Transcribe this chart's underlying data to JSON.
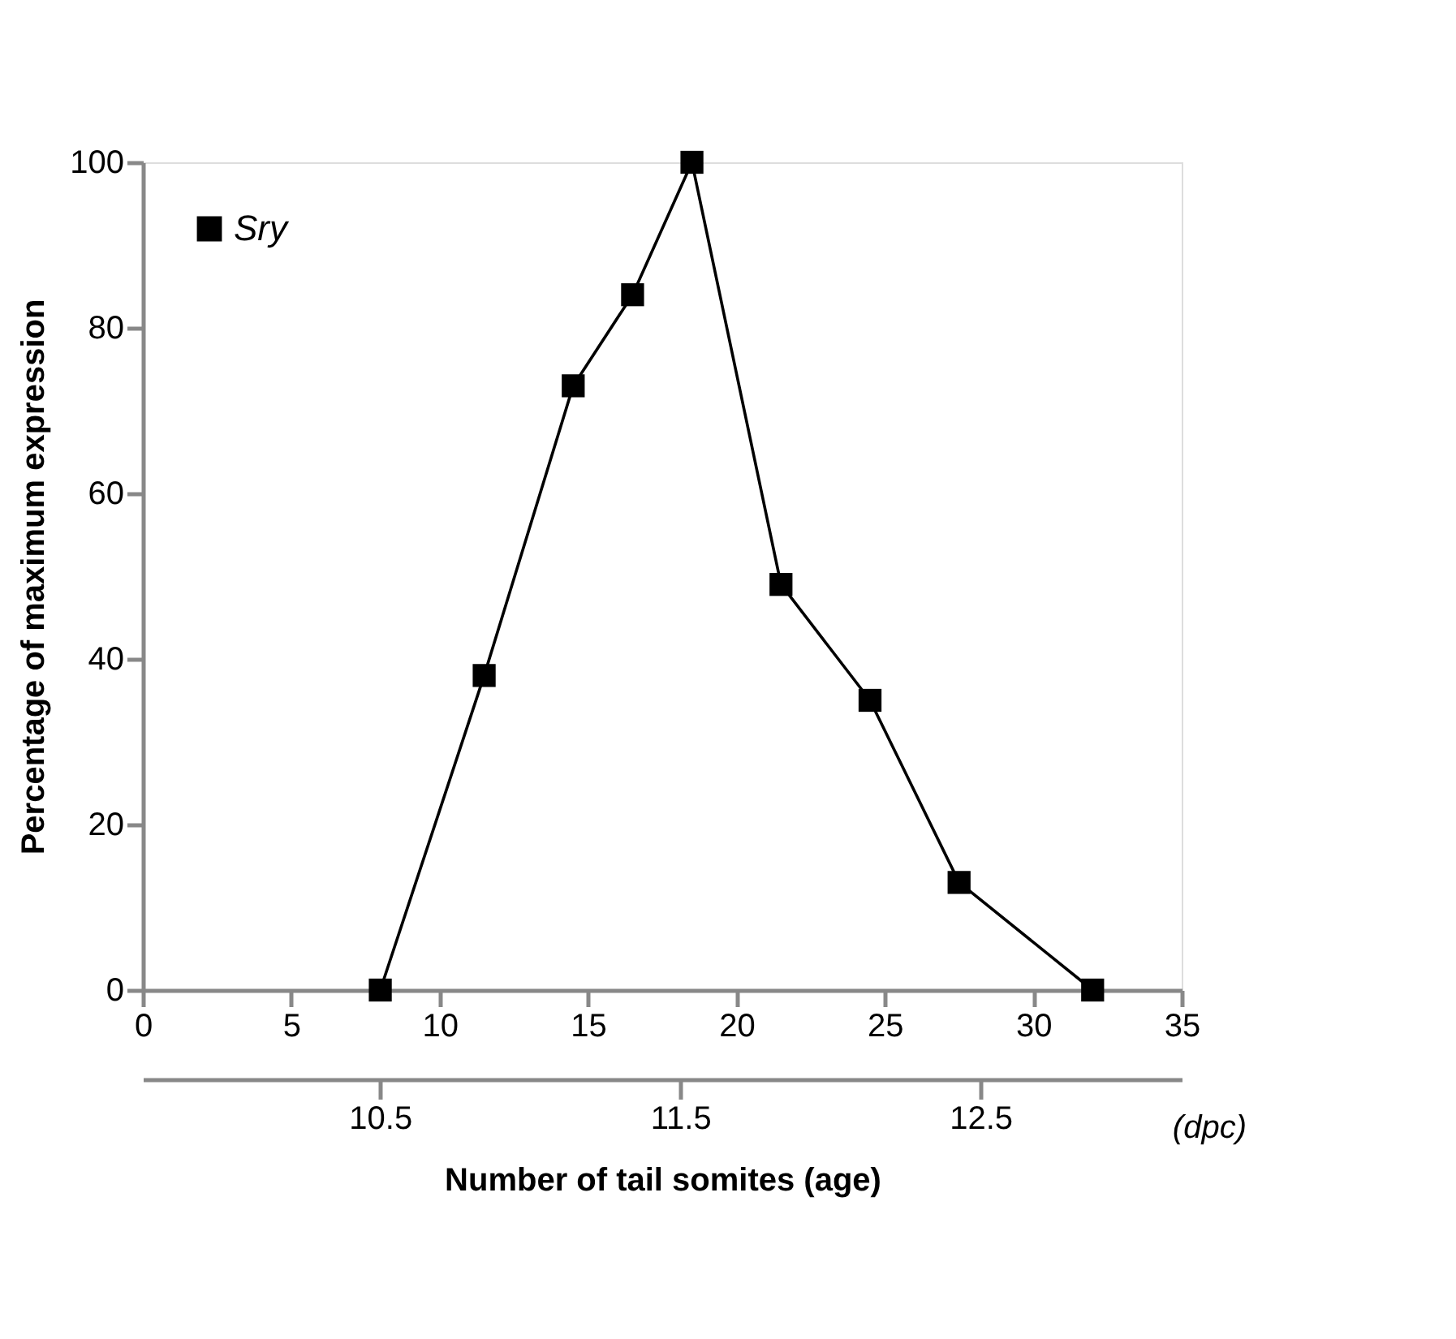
{
  "chart_data": {
    "type": "line",
    "xlabel": "Number of tail somites (age)",
    "ylabel": "Percentage of maximum expression",
    "x": [
      8,
      11.5,
      14.5,
      16.5,
      18.5,
      21.5,
      24.5,
      27.5,
      32
    ],
    "series": [
      {
        "name": "Sry",
        "color": "#000000",
        "values": [
          0,
          38,
          73,
          84,
          100,
          49,
          35,
          13,
          0
        ]
      }
    ],
    "xlim": [
      0,
      35
    ],
    "xticks": [
      0,
      5,
      10,
      15,
      20,
      25,
      30,
      35
    ],
    "ylim": [
      0,
      100
    ],
    "yticks": [
      0,
      20,
      40,
      60,
      80,
      100
    ],
    "x2lim": [
      9.71,
      13.17
    ],
    "x2ticks": [
      10.5,
      11.5,
      12.5
    ],
    "x2label": "(dpc)",
    "marker": "square",
    "line_style": "solid",
    "grid": false,
    "legend": "top left"
  }
}
